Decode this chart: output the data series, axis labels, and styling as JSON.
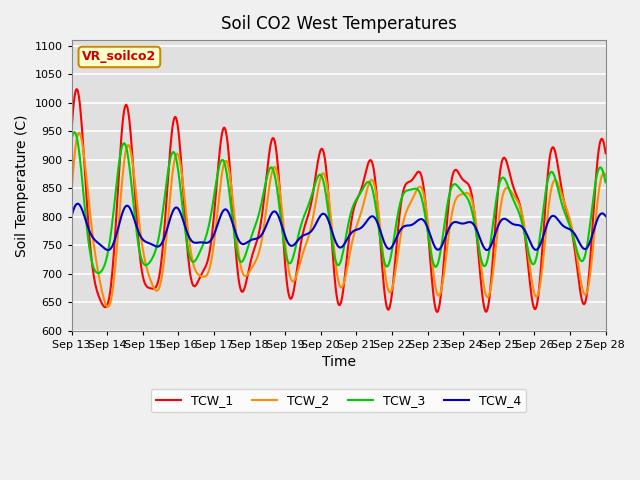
{
  "title": "Soil CO2 West Temperatures",
  "xlabel": "Time",
  "ylabel": "Soil Temperature (C)",
  "ylim": [
    600,
    1110
  ],
  "yticks": [
    600,
    650,
    700,
    750,
    800,
    850,
    900,
    950,
    1000,
    1050,
    1100
  ],
  "x_labels": [
    "Sep 13",
    "Sep 14",
    "Sep 15",
    "Sep 16",
    "Sep 17",
    "Sep 18",
    "Sep 19",
    "Sep 20",
    "Sep 21",
    "Sep 22",
    "Sep 23",
    "Sep 24",
    "Sep 25",
    "Sep 26",
    "Sep 27",
    "Sep 28"
  ],
  "colors": {
    "TCW_1": "#ff0000",
    "TCW_2": "#ff8c00",
    "TCW_3": "#00cc00",
    "TCW_4": "#0000cd"
  },
  "annotation_text": "VR_soilco2",
  "annotation_facecolor": "#ffffcc",
  "annotation_edgecolor": "#cc8800",
  "annotation_textcolor": "#cc0000",
  "bg_color": "#e0e0e0",
  "grid_color": "#ffffff",
  "fig_bg_color": "#f0f0f0"
}
